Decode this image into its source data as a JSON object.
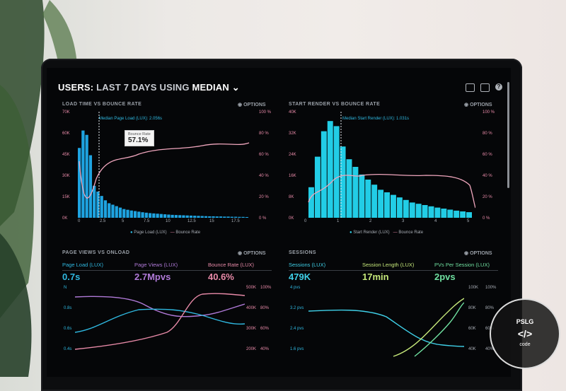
{
  "header": {
    "title_prefix": "USERS:",
    "title_range": "LAST 7 DAYS",
    "title_using": "USING",
    "title_stat": "MEDIAN"
  },
  "options_label": "OPTIONS",
  "panels": {
    "load_time": {
      "title": "LOAD TIME VS BOUNCE RATE",
      "median_label": "Median Page Load (LUX): 2.056s",
      "tooltip_label": "Bounce Rate",
      "tooltip_value": "57.1%",
      "legend": [
        "Page Load (LUX)",
        "Bounce Rate"
      ],
      "y_left": [
        "70K",
        "60K",
        "45K",
        "30K",
        "15K",
        "0K"
      ],
      "y_right": [
        "100 %",
        "80 %",
        "60 %",
        "40 %",
        "20 %",
        "0 %"
      ],
      "x": [
        "0",
        "2.5",
        "5",
        "7.5",
        "10",
        "12.5",
        "15",
        "17.5"
      ]
    },
    "start_render": {
      "title": "START RENDER VS BOUNCE RATE",
      "median_label": "Median Start Render (LUX): 1.031s",
      "legend": [
        "Start Render (LUX)",
        "Bounce Rate"
      ],
      "y_left": [
        "40K",
        "32K",
        "24K",
        "16K",
        "8K",
        "0K"
      ],
      "y_right": [
        "100 %",
        "80 %",
        "60 %",
        "40 %",
        "20 %",
        "0 %"
      ],
      "x": [
        "0",
        "1",
        "2",
        "3",
        "4",
        "5"
      ]
    },
    "page_views": {
      "title": "PAGE VIEWS VS ONLOAD",
      "kpis": [
        {
          "label": "Page Load (LUX)",
          "value": "0.7s"
        },
        {
          "label": "Page Views (LUX)",
          "value": "2.7Mpvs"
        },
        {
          "label": "Bounce Rate (LUX)",
          "value": "40.6%"
        }
      ],
      "y_left": [
        "N",
        "0.8s",
        "0.6s",
        "0.4s"
      ],
      "y_mid": [
        "500K",
        "400K",
        "300K",
        "200K"
      ],
      "y_right": [
        "100%",
        "80%",
        "60%",
        "40%"
      ]
    },
    "sessions": {
      "title": "SESSIONS",
      "kpis": [
        {
          "label": "Sessions (LUX)",
          "value": "479K"
        },
        {
          "label": "Session Length (LUX)",
          "value": "17min"
        },
        {
          "label": "PVs Per Session (LUX)",
          "value": "2pvs"
        }
      ],
      "y_left": [
        "4 pvs",
        "3.2 pvs",
        "2.4 pvs",
        "1.6 pvs"
      ],
      "y_mid": [
        "100K",
        "80K",
        "60K",
        "40K"
      ],
      "y_right": [
        "100%",
        "80%",
        "60%",
        "40%"
      ]
    }
  },
  "badge": {
    "line1": "PSLG",
    "line2": "</>",
    "line3": "code"
  },
  "chart_data": [
    {
      "type": "bar",
      "title": "LOAD TIME VS BOUNCE RATE",
      "series": [
        {
          "name": "Page Load (LUX)",
          "values": [
            48,
            60,
            57,
            43,
            22,
            18,
            15,
            12,
            10,
            9,
            8,
            7,
            6,
            5.5,
            5,
            4.6,
            4.2,
            3.8,
            3.5,
            3.2,
            3,
            2.8,
            2.6,
            2.4,
            2.2,
            2,
            1.9,
            1.8,
            1.7,
            1.6,
            1.5,
            1.4,
            1.3,
            1.2,
            1.1,
            1,
            1,
            0.9,
            0.9,
            0.8,
            0.8,
            0.7,
            0.7,
            0.6,
            0.6,
            0.5
          ]
        }
      ],
      "ylim": [
        0,
        70
      ]
    },
    {
      "type": "bar",
      "title": "START RENDER VS BOUNCE RATE",
      "series": [
        {
          "name": "Start Render (LUX)",
          "values": [
            12,
            24,
            34,
            38,
            36,
            28,
            23,
            20,
            17,
            15,
            13,
            11,
            10,
            9,
            8,
            7,
            6,
            5.5,
            5,
            4.5,
            4,
            3.6,
            3.2,
            2.8,
            2.5,
            2.2
          ]
        }
      ],
      "ylim": [
        0,
        40
      ]
    }
  ]
}
